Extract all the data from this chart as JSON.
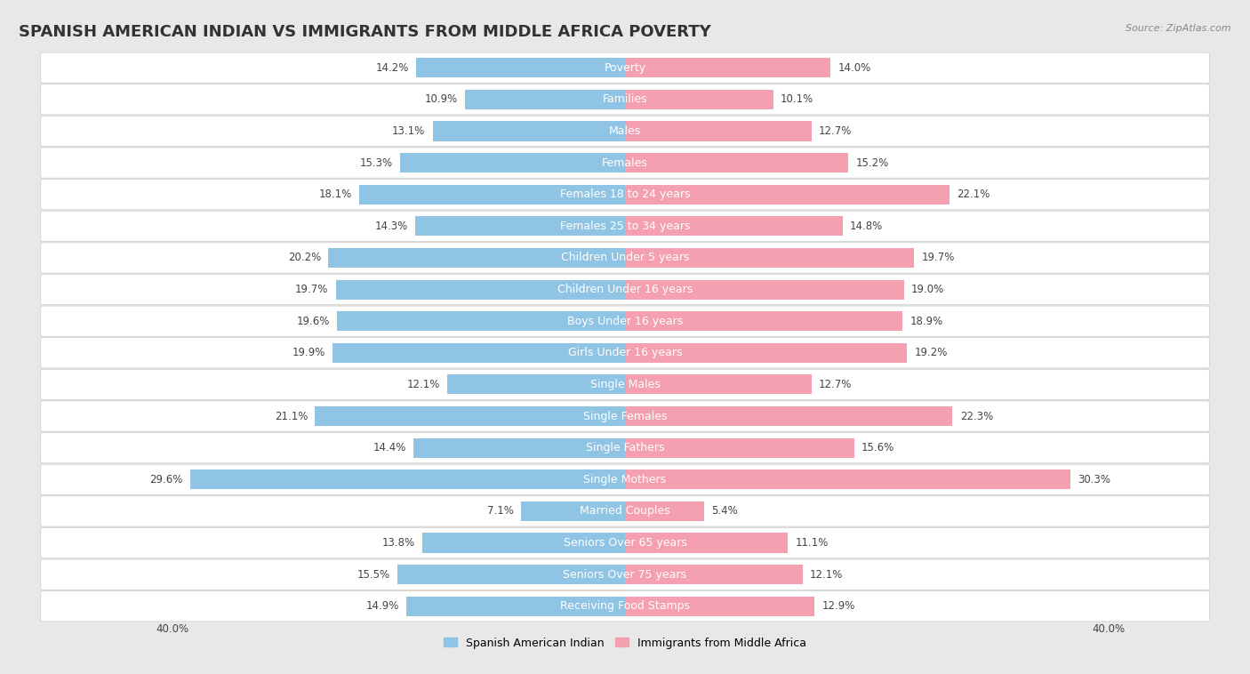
{
  "title": "SPANISH AMERICAN INDIAN VS IMMIGRANTS FROM MIDDLE AFRICA POVERTY",
  "source": "Source: ZipAtlas.com",
  "categories": [
    "Poverty",
    "Families",
    "Males",
    "Females",
    "Females 18 to 24 years",
    "Females 25 to 34 years",
    "Children Under 5 years",
    "Children Under 16 years",
    "Boys Under 16 years",
    "Girls Under 16 years",
    "Single Males",
    "Single Females",
    "Single Fathers",
    "Single Mothers",
    "Married Couples",
    "Seniors Over 65 years",
    "Seniors Over 75 years",
    "Receiving Food Stamps"
  ],
  "left_values": [
    14.2,
    10.9,
    13.1,
    15.3,
    18.1,
    14.3,
    20.2,
    19.7,
    19.6,
    19.9,
    12.1,
    21.1,
    14.4,
    29.6,
    7.1,
    13.8,
    15.5,
    14.9
  ],
  "right_values": [
    14.0,
    10.1,
    12.7,
    15.2,
    22.1,
    14.8,
    19.7,
    19.0,
    18.9,
    19.2,
    12.7,
    22.3,
    15.6,
    30.3,
    5.4,
    11.1,
    12.1,
    12.9
  ],
  "left_color": "#90c4e4",
  "right_color": "#f4a0b0",
  "left_label": "Spanish American Indian",
  "right_label": "Immigrants from Middle Africa",
  "xlim": 40.0,
  "outer_bg": "#e8e8e8",
  "row_bg": "#ffffff",
  "title_fontsize": 13,
  "label_fontsize": 9,
  "value_fontsize": 8.5,
  "source_fontsize": 8
}
